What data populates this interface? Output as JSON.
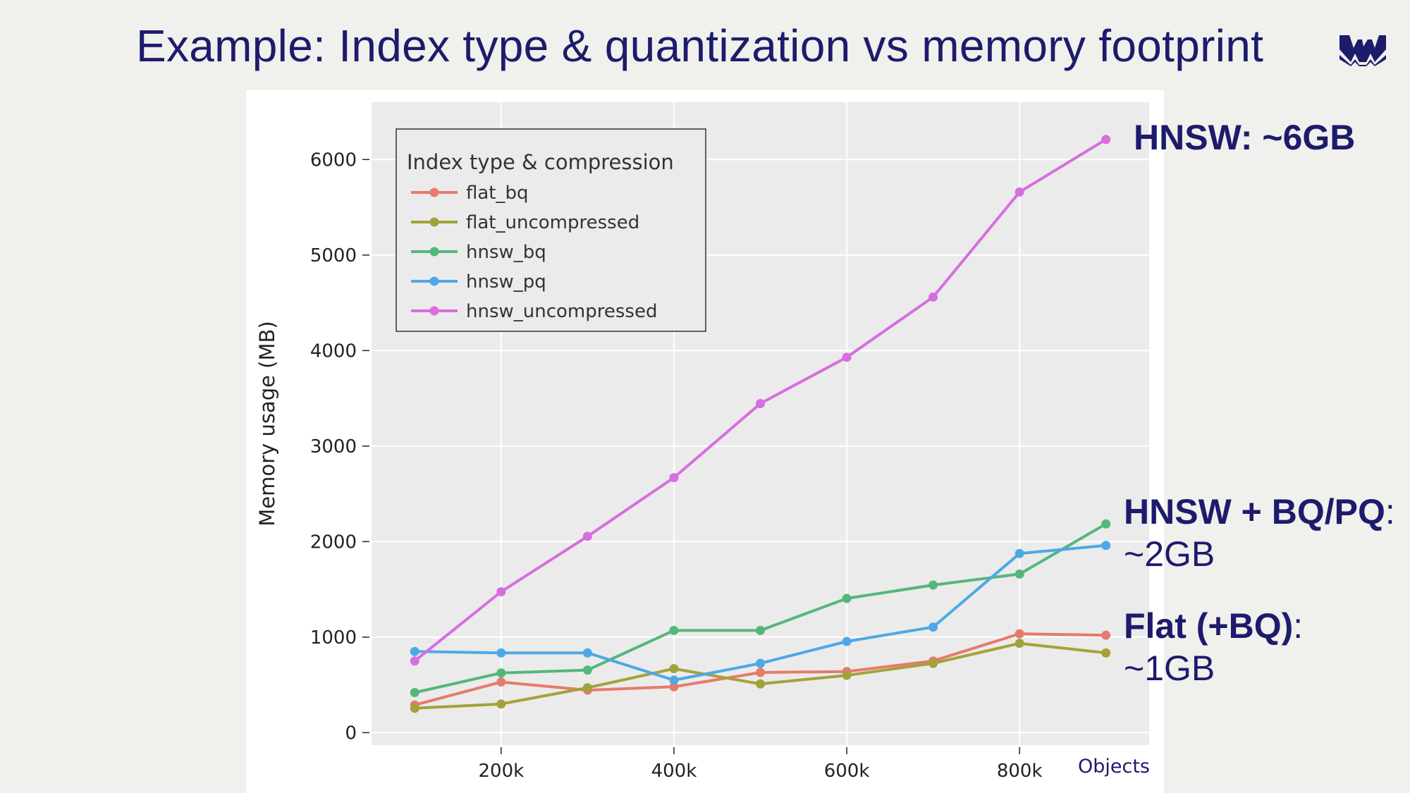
{
  "slide": {
    "title": "Example: Index type & quantization vs memory footprint"
  },
  "logo": {
    "icon": "weaviate-logo-icon",
    "color": "#1d1b6b"
  },
  "annotations": {
    "hnsw": "HNSW: ~6GB",
    "bq_pq_bold": "HNSW + BQ/PQ",
    "bq_pq_colon": ":",
    "bq_pq_value": "~2GB",
    "flat_bold": "Flat (+BQ)",
    "flat_colon": ":",
    "flat_value": "~1GB"
  },
  "chart_data": {
    "type": "line",
    "xlabel": "Objects",
    "ylabel": "Memory usage (MB)",
    "xlim": [
      50000,
      950000
    ],
    "ylim": [
      -130,
      6600
    ],
    "xticks": [
      200000,
      400000,
      600000,
      800000
    ],
    "xtick_labels": [
      "200k",
      "400k",
      "600k",
      "800k"
    ],
    "yticks": [
      0,
      1000,
      2000,
      3000,
      4000,
      5000,
      6000
    ],
    "ytick_labels": [
      "0",
      "1000",
      "2000",
      "3000",
      "4000",
      "5000",
      "6000"
    ],
    "grid": true,
    "legend_title": "Index type & compression",
    "legend_position": "top-left",
    "x": [
      100000,
      200000,
      300000,
      400000,
      500000,
      600000,
      700000,
      800000,
      900000
    ],
    "series": [
      {
        "name": "flat_bq",
        "color": "#e57b6c",
        "values": [
          290,
          530,
          445,
          480,
          630,
          640,
          750,
          1035,
          1020
        ]
      },
      {
        "name": "flat_uncompressed",
        "color": "#a3a23a",
        "values": [
          255,
          300,
          470,
          670,
          510,
          600,
          725,
          935,
          835
        ]
      },
      {
        "name": "hnsw_bq",
        "color": "#54b77a",
        "values": [
          420,
          625,
          655,
          1070,
          1070,
          1405,
          1545,
          1660,
          2185
        ]
      },
      {
        "name": "hnsw_pq",
        "color": "#4ea8e6",
        "values": [
          850,
          835,
          835,
          550,
          725,
          955,
          1105,
          1875,
          1960
        ]
      },
      {
        "name": "hnsw_uncompressed",
        "color": "#d66ee0",
        "values": [
          750,
          1475,
          2055,
          2670,
          3445,
          3930,
          4560,
          5660,
          6210
        ]
      }
    ]
  }
}
